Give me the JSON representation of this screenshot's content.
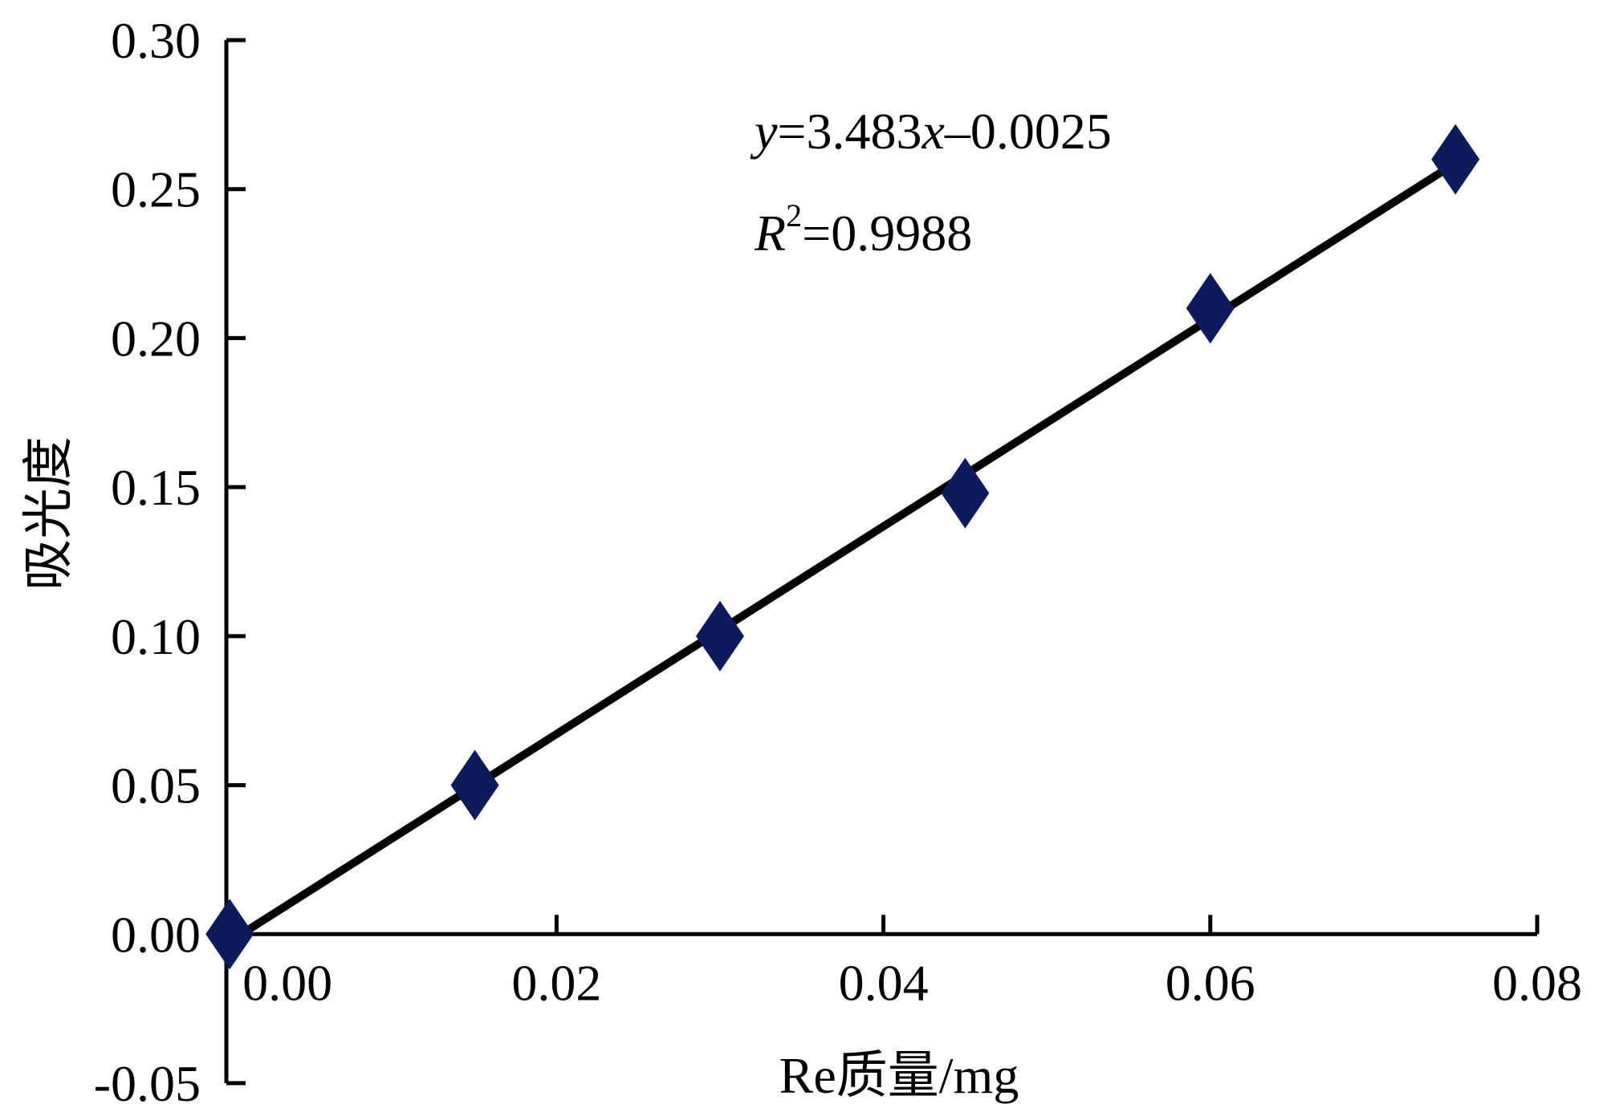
{
  "chart_data": {
    "type": "scatter",
    "xlabel": "Re质量/mg",
    "ylabel": "吸光度",
    "xlim": [
      -0.0004,
      0.08
    ],
    "ylim": [
      -0.05,
      0.3
    ],
    "x_ticks": [
      "0.00",
      "0.02",
      "0.04",
      "0.06",
      "0.08"
    ],
    "y_ticks": [
      "-0.05",
      "0.00",
      "0.05",
      "0.10",
      "0.15",
      "0.20",
      "0.25",
      "0.30"
    ],
    "grid": false,
    "series": [
      {
        "marker": "diamond",
        "color": "#0d1a5c",
        "x": [
          0.0,
          0.015,
          0.03,
          0.045,
          0.06,
          0.075
        ],
        "y": [
          0.0,
          0.05,
          0.1,
          0.148,
          0.21,
          0.26
        ]
      }
    ],
    "trendline": {
      "slope": 3.483,
      "intercept": -0.0025,
      "color": "#000000"
    },
    "equation": {
      "y": "y",
      "rhs": "=3.483",
      "x": "x",
      "tail": "–0.0025"
    },
    "r_squared": {
      "r": "R",
      "sup": "2",
      "value": "=0.9988"
    }
  }
}
